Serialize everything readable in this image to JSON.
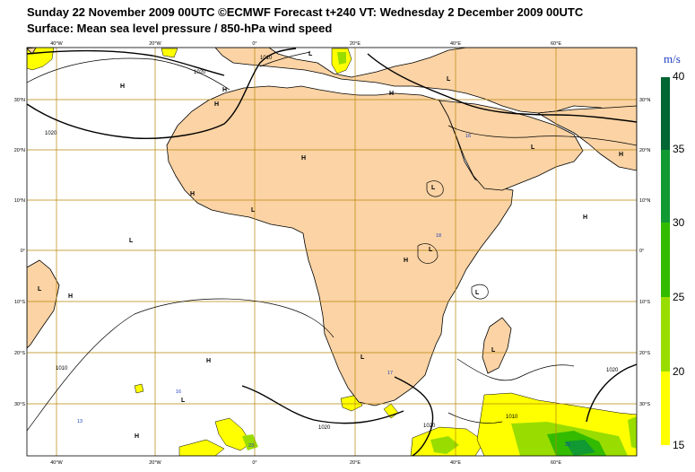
{
  "title_line1": "Sunday 22 November 2009 00UTC ©ECMWF Forecast t+240 VT: Wednesday 2 December 2009 00UTC",
  "title_line2": "Surface: Mean sea level pressure / 850-hPa wind speed",
  "colors": {
    "land": "#fbd3a4",
    "sea": "#ffffff",
    "gridline": "#b8860b",
    "isobar": "#000000",
    "coast": "#000000",
    "wind_15_20": "#ffff00",
    "wind_20_25": "#99dd00",
    "wind_25_30": "#33bb00",
    "wind_30_35": "#119933",
    "wind_35_40": "#006633",
    "legend_unit": "#1f3fc0"
  },
  "grid": {
    "lon_labels": [
      "40°W",
      "20°W",
      "0°",
      "20°E",
      "40°E",
      "60°E"
    ],
    "lat_labels_left": [
      "30°N",
      "20°N",
      "10°N",
      "0°",
      "10°S",
      "20°S",
      "30°S"
    ],
    "lat_labels_right": [
      "30°N",
      "20°N",
      "10°N",
      "0°",
      "10°S",
      "20°S",
      "30°S"
    ]
  },
  "legend": {
    "unit": "m/s",
    "ticks": [
      "40",
      "35",
      "30",
      "25",
      "20",
      "15"
    ]
  },
  "pressure_centers": [
    {
      "id": "h-north-atlantic",
      "label": "H"
    },
    {
      "id": "h-iberia",
      "label": "H"
    },
    {
      "id": "l-mediterranean",
      "label": "L"
    },
    {
      "id": "h-nw-africa",
      "label": "H"
    },
    {
      "id": "h-sahara",
      "label": "H"
    },
    {
      "id": "h-libya",
      "label": "H"
    },
    {
      "id": "l-turkey",
      "label": "L"
    },
    {
      "id": "l-arabia",
      "label": "L"
    },
    {
      "id": "h-arabian-sea",
      "label": "H"
    },
    {
      "id": "h-west-africa",
      "label": "H"
    },
    {
      "id": "l-west-africa",
      "label": "L"
    },
    {
      "id": "l-atlantic",
      "label": "L"
    },
    {
      "id": "l-horn",
      "label": "L"
    },
    {
      "id": "h-indian-ocean",
      "label": "H"
    },
    {
      "id": "h-east-africa",
      "label": "H"
    },
    {
      "id": "l-brazil",
      "label": "L"
    },
    {
      "id": "h-brazil",
      "label": "H"
    },
    {
      "id": "l-central-africa",
      "label": "L"
    },
    {
      "id": "l-indian",
      "label": "L"
    },
    {
      "id": "h-south-atlantic",
      "label": "H"
    },
    {
      "id": "l-kalahari",
      "label": "L"
    },
    {
      "id": "l-madagascar",
      "label": "L"
    },
    {
      "id": "l-south-atlantic",
      "label": "L"
    },
    {
      "id": "h-southwest",
      "label": "H"
    }
  ],
  "isobar_labels": [
    "1020",
    "1010",
    "1020",
    "1020",
    "1010",
    "1020",
    "1020",
    "1010"
  ],
  "wind_max_labels": [
    "16",
    "18",
    "17",
    "16",
    "13",
    "23",
    "22"
  ]
}
